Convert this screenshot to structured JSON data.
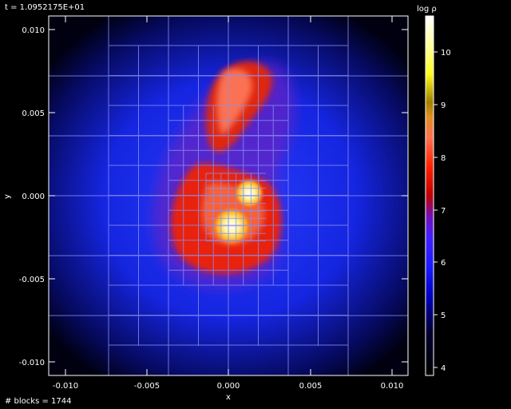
{
  "header": {
    "time_label": "t = 1.0952175E+01"
  },
  "footer": {
    "blocks_label": "# blocks = 1744"
  },
  "plot": {
    "xlabel": "x",
    "ylabel": "y",
    "x_ticks": [
      "-0.010",
      "-0.005",
      "0.000",
      "0.005",
      "0.010"
    ],
    "y_ticks": [
      "0.010",
      "0.005",
      "0.000",
      "-0.005",
      "-0.010"
    ]
  },
  "colorbar": {
    "title": "log ρ",
    "ticks": [
      "10",
      "9",
      "8",
      "7",
      "6",
      "5",
      "4"
    ]
  },
  "colors": {
    "background": "#000000",
    "grid": "#8a8ff0",
    "halo": "#1a2cff",
    "hot": "#ff3a10",
    "core": "#fff8c0"
  }
}
